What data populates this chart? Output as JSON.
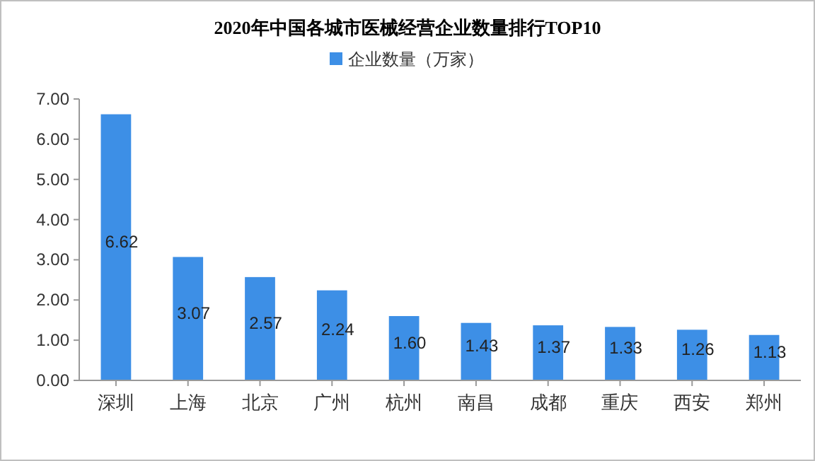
{
  "chart_data": {
    "type": "bar",
    "title": "2020年中国各城市医械经营企业数量排行TOP10",
    "categories": [
      "深圳",
      "上海",
      "北京",
      "广州",
      "杭州",
      "南昌",
      "成都",
      "重庆",
      "西安",
      "郑州"
    ],
    "series": [
      {
        "name": "企业数量（万家）",
        "color": "#3d8fe6",
        "values": [
          6.62,
          3.07,
          2.57,
          2.24,
          1.6,
          1.43,
          1.37,
          1.33,
          1.26,
          1.13
        ]
      }
    ],
    "ylim": [
      0,
      7
    ],
    "yticks": [
      {
        "value": 0,
        "label": "0.00"
      },
      {
        "value": 1,
        "label": "1.00"
      },
      {
        "value": 2,
        "label": "2.00"
      },
      {
        "value": 3,
        "label": "3.00"
      },
      {
        "value": 4,
        "label": "4.00"
      },
      {
        "value": 5,
        "label": "5.00"
      },
      {
        "value": 6,
        "label": "6.00"
      },
      {
        "value": 7,
        "label": "7.00"
      }
    ],
    "value_labels": [
      "6.62",
      "3.07",
      "2.57",
      "2.24",
      "1.60",
      "1.43",
      "1.37",
      "1.33",
      "1.26",
      "1.13"
    ],
    "legend": "top",
    "grid": false
  }
}
